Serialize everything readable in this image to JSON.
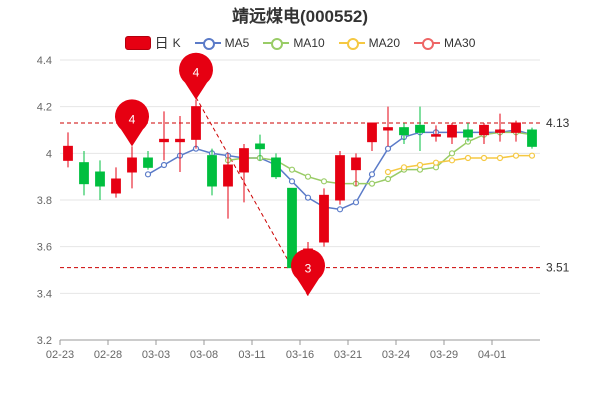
{
  "chart_data": {
    "type": "candlestick",
    "title": "靖远煤电(000552)",
    "legend": {
      "k_prefix": "日",
      "k_suffix": "K",
      "items": [
        {
          "key": "ma5",
          "label": "MA5",
          "color": "#5b7bc8"
        },
        {
          "key": "ma10",
          "label": "MA10",
          "color": "#99cc66"
        },
        {
          "key": "ma20",
          "label": "MA20",
          "color": "#f5c842"
        },
        {
          "key": "ma30",
          "label": "MA30",
          "color": "#ee6666"
        }
      ]
    },
    "colors": {
      "up": "#e60012",
      "down": "#00bf3f",
      "ref_line": "#cc0000",
      "trend": "#cc0000",
      "marker": "#e60012"
    },
    "ylim": [
      3.2,
      4.4
    ],
    "yticks": [
      3.2,
      3.4,
      3.6,
      3.8,
      4,
      4.2,
      4.4
    ],
    "xtick_labels": [
      "02-23",
      "02-28",
      "03-03",
      "03-08",
      "03-11",
      "03-16",
      "03-21",
      "03-24",
      "03-29",
      "04-01"
    ],
    "xtick_indices": [
      0,
      3,
      6,
      9,
      12,
      15,
      18,
      21,
      24,
      27
    ],
    "ref_lines": [
      {
        "value": 4.13,
        "label": "4.13"
      },
      {
        "value": 3.51,
        "label": "3.51"
      }
    ],
    "candles": [
      {
        "o": 3.97,
        "c": 4.03,
        "h": 4.09,
        "l": 3.94
      },
      {
        "o": 3.96,
        "c": 3.87,
        "h": 4.01,
        "l": 3.82
      },
      {
        "o": 3.92,
        "c": 3.86,
        "h": 3.97,
        "l": 3.8
      },
      {
        "o": 3.83,
        "c": 3.89,
        "h": 3.94,
        "l": 3.81
      },
      {
        "o": 3.92,
        "c": 3.98,
        "h": 4.03,
        "l": 3.85
      },
      {
        "o": 3.98,
        "c": 3.94,
        "h": 4.01,
        "l": 3.93
      },
      {
        "o": 4.05,
        "c": 4.06,
        "h": 4.18,
        "l": 3.97
      },
      {
        "o": 4.05,
        "c": 4.06,
        "h": 4.16,
        "l": 3.92
      },
      {
        "o": 4.06,
        "c": 4.2,
        "h": 4.23,
        "l": 4.02
      },
      {
        "o": 3.99,
        "c": 3.86,
        "h": 4.02,
        "l": 3.82
      },
      {
        "o": 3.86,
        "c": 3.95,
        "h": 4.0,
        "l": 3.72
      },
      {
        "o": 3.92,
        "c": 4.02,
        "h": 4.04,
        "l": 3.79
      },
      {
        "o": 4.04,
        "c": 4.02,
        "h": 4.08,
        "l": 3.97
      },
      {
        "o": 3.98,
        "c": 3.9,
        "h": 4.0,
        "l": 3.89
      },
      {
        "o": 3.85,
        "c": 3.51,
        "h": 3.85,
        "l": 3.51
      },
      {
        "o": 3.58,
        "c": 3.59,
        "h": 3.62,
        "l": 3.39
      },
      {
        "o": 3.62,
        "c": 3.82,
        "h": 3.85,
        "l": 3.6
      },
      {
        "o": 3.8,
        "c": 3.99,
        "h": 4.01,
        "l": 3.78
      },
      {
        "o": 3.93,
        "c": 3.98,
        "h": 4.0,
        "l": 3.86
      },
      {
        "o": 4.05,
        "c": 4.13,
        "h": 4.13,
        "l": 4.01
      },
      {
        "o": 4.1,
        "c": 4.11,
        "h": 4.2,
        "l": 4.03
      },
      {
        "o": 4.11,
        "c": 4.08,
        "h": 4.13,
        "l": 4.04
      },
      {
        "o": 4.12,
        "c": 4.09,
        "h": 4.2,
        "l": 4.01
      },
      {
        "o": 4.08,
        "c": 4.08,
        "h": 4.12,
        "l": 4.05
      },
      {
        "o": 4.07,
        "c": 4.12,
        "h": 4.13,
        "l": 4.04
      },
      {
        "o": 4.1,
        "c": 4.07,
        "h": 4.13,
        "l": 4.05
      },
      {
        "o": 4.08,
        "c": 4.12,
        "h": 4.13,
        "l": 4.04
      },
      {
        "o": 4.09,
        "c": 4.1,
        "h": 4.17,
        "l": 4.05
      },
      {
        "o": 4.09,
        "c": 4.13,
        "h": 4.14,
        "l": 4.05
      },
      {
        "o": 4.1,
        "c": 4.03,
        "h": 4.11,
        "l": 4.02
      }
    ],
    "ma5": [
      null,
      null,
      null,
      null,
      null,
      3.91,
      3.95,
      3.99,
      4.02,
      4.0,
      3.99,
      3.98,
      3.98,
      3.95,
      3.88,
      3.81,
      3.77,
      3.76,
      3.79,
      3.91,
      4.02,
      4.07,
      4.09,
      4.09,
      4.09,
      4.09,
      4.09,
      4.09,
      4.1,
      4.08
    ],
    "ma10": [
      null,
      null,
      null,
      null,
      null,
      null,
      null,
      null,
      null,
      null,
      3.97,
      3.98,
      3.98,
      3.97,
      3.93,
      3.9,
      3.88,
      3.87,
      3.87,
      3.87,
      3.89,
      3.93,
      3.93,
      3.94,
      4.0,
      4.05,
      4.08,
      4.09,
      4.09,
      4.08
    ],
    "ma20": [
      null,
      null,
      null,
      null,
      null,
      null,
      null,
      null,
      null,
      null,
      null,
      null,
      null,
      null,
      null,
      null,
      null,
      null,
      null,
      null,
      3.92,
      3.94,
      3.95,
      3.96,
      3.97,
      3.98,
      3.98,
      3.98,
      3.99,
      3.99
    ],
    "ma30": [],
    "markers": [
      {
        "index": 4,
        "value": 4.03,
        "label": "4"
      },
      {
        "index": 8,
        "value": 4.23,
        "label": "4"
      },
      {
        "index": 15,
        "value": 3.39,
        "label": "3"
      }
    ],
    "trend_segment": {
      "from_index": 8,
      "from_value": 4.24,
      "to_index": 15,
      "to_value": 3.39
    }
  }
}
